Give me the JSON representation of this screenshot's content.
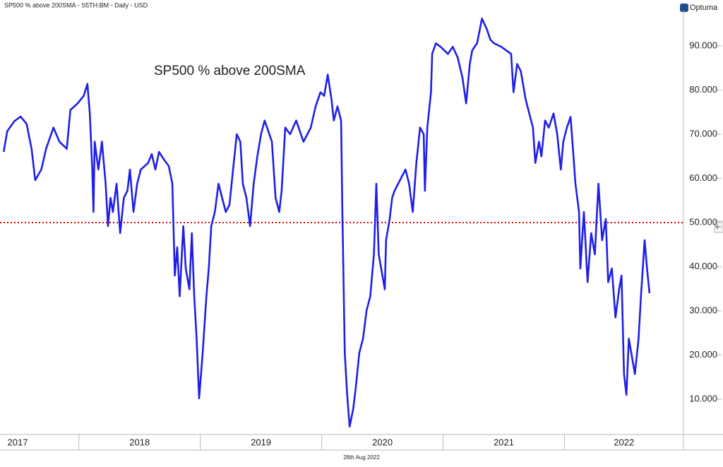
{
  "chart_data": {
    "type": "line",
    "header": "SP500 % above 200SMA - S5TH:BM - Daily - USD",
    "brand": "Optuma",
    "annotation": "SP500 % above 200SMA",
    "footer": "28th Aug 2022",
    "xlim": [
      2017.35,
      2022.98
    ],
    "xticks": [
      2017,
      2018,
      2019,
      2020,
      2021,
      2022
    ],
    "ylim": [
      2,
      98
    ],
    "yticks": [
      {
        "value": 10,
        "label": "10.000"
      },
      {
        "value": 20,
        "label": "20.000"
      },
      {
        "value": 30,
        "label": "30.000"
      },
      {
        "value": 40,
        "label": "40.000"
      },
      {
        "value": 50,
        "label": "50.000"
      },
      {
        "value": 60,
        "label": "60.000"
      },
      {
        "value": 70,
        "label": "70.000"
      },
      {
        "value": 80,
        "label": "80.000"
      },
      {
        "value": 90,
        "label": "90.000"
      }
    ],
    "hline": {
      "value": 50,
      "color": "#e00000"
    },
    "series": [
      {
        "color": "#1f1fe6",
        "x": [
          2017.38,
          2017.41,
          2017.47,
          2017.52,
          2017.57,
          2017.61,
          2017.64,
          2017.69,
          2017.73,
          2017.79,
          2017.84,
          2017.9,
          2017.93,
          2017.99,
          2018.04,
          2018.07,
          2018.09,
          2018.11,
          2018.12,
          2018.13,
          2018.16,
          2018.19,
          2018.22,
          2018.24,
          2018.26,
          2018.28,
          2018.31,
          2018.34,
          2018.37,
          2018.4,
          2018.42,
          2018.45,
          2018.48,
          2018.51,
          2018.57,
          2018.6,
          2018.63,
          2018.66,
          2018.7,
          2018.74,
          2018.77,
          2018.79,
          2018.81,
          2018.83,
          2018.86,
          2018.88,
          2018.91,
          2018.93,
          2018.95,
          2018.97,
          2018.99,
          2019.02,
          2019.05,
          2019.07,
          2019.09,
          2019.12,
          2019.15,
          2019.18,
          2019.21,
          2019.24,
          2019.27,
          2019.3,
          2019.33,
          2019.35,
          2019.38,
          2019.41,
          2019.44,
          2019.47,
          2019.5,
          2019.53,
          2019.56,
          2019.59,
          2019.62,
          2019.65,
          2019.67,
          2019.7,
          2019.74,
          2019.79,
          2019.85,
          2019.91,
          2019.95,
          2019.99,
          2020.02,
          2020.05,
          2020.08,
          2020.1,
          2020.13,
          2020.16,
          2020.17,
          2020.19,
          2020.21,
          2020.23,
          2020.26,
          2020.28,
          2020.31,
          2020.34,
          2020.37,
          2020.4,
          2020.43,
          2020.45,
          2020.47,
          2020.49,
          2020.52,
          2020.53,
          2020.56,
          2020.58,
          2020.6,
          2020.63,
          2020.66,
          2020.69,
          2020.72,
          2020.75,
          2020.78,
          2020.81,
          2020.84,
          2020.85,
          2020.87,
          2020.9,
          2020.91,
          2020.94,
          2020.98,
          2021.04,
          2021.08,
          2021.12,
          2021.16,
          2021.19,
          2021.22,
          2021.24,
          2021.28,
          2021.32,
          2021.36,
          2021.39,
          2021.42,
          2021.48,
          2021.52,
          2021.56,
          2021.58,
          2021.61,
          2021.64,
          2021.68,
          2021.71,
          2021.74,
          2021.76,
          2021.79,
          2021.81,
          2021.84,
          2021.87,
          2021.91,
          2021.94,
          2021.97,
          2021.99,
          2022.02,
          2022.05,
          2022.07,
          2022.09,
          2022.12,
          2022.13,
          2022.16,
          2022.19,
          2022.22,
          2022.25,
          2022.28,
          2022.31,
          2022.34,
          2022.36,
          2022.39,
          2022.42,
          2022.45,
          2022.47,
          2022.49,
          2022.51,
          2022.53,
          2022.55,
          2022.58,
          2022.61,
          2022.63,
          2022.66,
          2022.68,
          2022.7
        ],
        "values": [
          66,
          70.7,
          73,
          74,
          72.3,
          66.7,
          59.6,
          62,
          66.7,
          71.5,
          68.3,
          66.7,
          75.5,
          77,
          78.7,
          81.4,
          74.7,
          62,
          52.4,
          68.3,
          62,
          68.3,
          58.8,
          49.2,
          55.6,
          52.4,
          58.8,
          47.6,
          55.6,
          57.2,
          62,
          52.4,
          58.8,
          62,
          63.5,
          65.5,
          62,
          66,
          64.3,
          62.8,
          58.8,
          38,
          44.4,
          33.3,
          49.2,
          39.6,
          34.9,
          47.6,
          33.3,
          23.7,
          10.2,
          20.5,
          33.3,
          39.6,
          49.2,
          52.4,
          58.8,
          55.6,
          52.4,
          54,
          62,
          70,
          68.3,
          58.8,
          55.6,
          49.2,
          58.8,
          65,
          70,
          73.1,
          70.7,
          68.3,
          55.6,
          52.4,
          57.2,
          71.5,
          70,
          73.1,
          68.3,
          71.5,
          76.3,
          79.5,
          78.7,
          83.5,
          78,
          73.1,
          76.3,
          73.1,
          52.4,
          20.5,
          11,
          3.8,
          7.8,
          12.5,
          20.5,
          23.7,
          30.1,
          33.3,
          42.8,
          58.8,
          42.8,
          39.6,
          34.9,
          46,
          50.8,
          55.6,
          57.2,
          58.8,
          60.4,
          62,
          58.8,
          52.4,
          63.5,
          71.5,
          70,
          57.2,
          71.5,
          79.5,
          88.2,
          90.6,
          89.8,
          88.2,
          89.8,
          87.4,
          82.7,
          77,
          85.9,
          89,
          90.6,
          96.2,
          93.8,
          91.4,
          90.6,
          89.8,
          89,
          88.2,
          79.5,
          85.9,
          84.3,
          77.9,
          74.7,
          71.5,
          63.5,
          68.3,
          65,
          73.1,
          71.5,
          74.7,
          70,
          62,
          68.3,
          71.5,
          73.9,
          66.7,
          58.8,
          52.4,
          39.6,
          52.4,
          36.5,
          47.6,
          42.8,
          58.8,
          46,
          50.8,
          36.5,
          39.6,
          28.5,
          34.9,
          38,
          15.7,
          11,
          23.7,
          20.5,
          15.7,
          23.7,
          33.3,
          46,
          39.6,
          34
        ]
      }
    ]
  }
}
